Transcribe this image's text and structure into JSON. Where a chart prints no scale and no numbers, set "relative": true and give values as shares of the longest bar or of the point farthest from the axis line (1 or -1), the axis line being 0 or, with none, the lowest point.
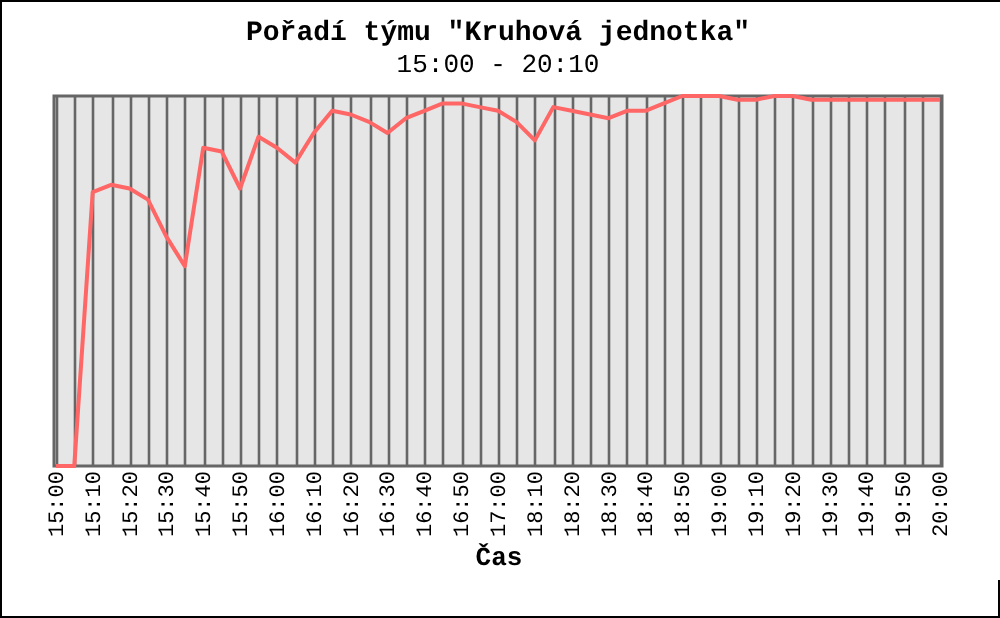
{
  "chart_data": {
    "type": "line",
    "title": "Pořadí týmu \"Kruhová jednotka\"",
    "subtitle": "15:00 - 20:10",
    "xlabel": "Čas",
    "relative": true,
    "grid": "x",
    "categories": [
      "15:00",
      null,
      "15:10",
      null,
      "15:20",
      null,
      "15:30",
      null,
      "15:40",
      null,
      "15:50",
      null,
      "16:00",
      null,
      "16:10",
      null,
      "16:20",
      null,
      "16:30",
      null,
      "16:40",
      null,
      "16:50",
      null,
      "17:00",
      null,
      "18:10",
      null,
      "18:20",
      null,
      "18:30",
      null,
      "18:40",
      null,
      "18:50",
      null,
      "19:00",
      null,
      "19:10",
      null,
      "19:20",
      null,
      "19:30",
      null,
      "19:40",
      null,
      "19:50",
      null,
      "20:00"
    ],
    "series": [
      {
        "color": "#ff6666",
        "values": [
          0,
          0,
          0.74,
          0.76,
          0.75,
          0.72,
          0.62,
          0.54,
          0.86,
          0.85,
          0.75,
          0.89,
          0.86,
          0.82,
          0.9,
          0.96,
          0.95,
          0.93,
          0.9,
          0.94,
          0.96,
          0.98,
          0.98,
          0.97,
          0.96,
          0.93,
          0.88,
          0.97,
          0.96,
          0.95,
          0.94,
          0.96,
          0.96,
          0.98,
          1,
          1,
          1,
          0.99,
          0.99,
          1,
          1,
          0.99,
          0.99,
          0.99,
          0.99,
          0.99,
          0.99,
          0.99,
          0.99
        ]
      }
    ],
    "line_style": "solid",
    "marker": "none"
  }
}
